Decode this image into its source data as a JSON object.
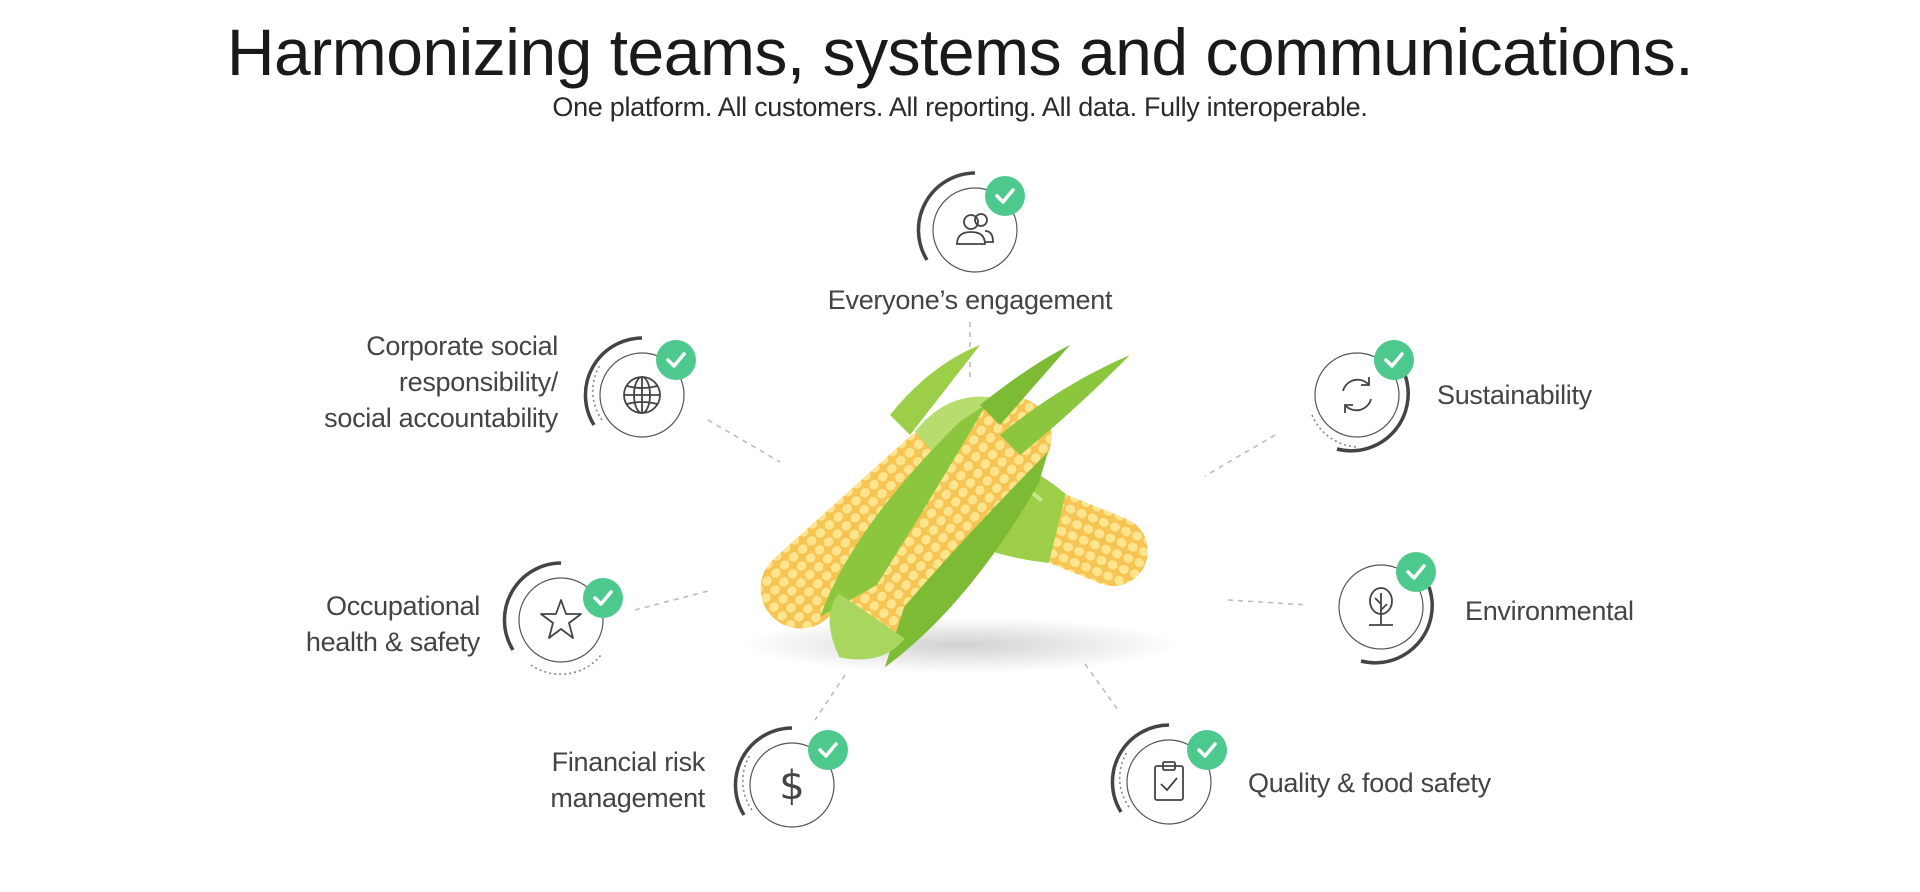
{
  "header": {
    "title": "Harmonizing teams, systems and communications.",
    "subtitle": "One platform. All customers. All reporting. All data. Fully interoperable."
  },
  "colors": {
    "check_green": "#4dc98d",
    "ring": "#555555",
    "text": "#444444"
  },
  "features": {
    "engagement": {
      "label": "Everyone’s engagement",
      "icon": "people-icon"
    },
    "csr": {
      "line1": "Corporate social",
      "line2": "responsibility/",
      "line3": "social accountability",
      "icon": "globe-icon"
    },
    "sustainability": {
      "label": "Sustainability",
      "icon": "refresh-icon"
    },
    "ohs": {
      "line1": "Occupational",
      "line2": "health & safety",
      "icon": "star-icon"
    },
    "environmental": {
      "label": "Environmental",
      "icon": "tree-icon"
    },
    "financial": {
      "line1": "Financial risk",
      "line2": "management",
      "icon": "dollar-icon"
    },
    "quality": {
      "label": "Quality & food safety",
      "icon": "clipboard-check-icon"
    }
  },
  "center_image": "corn-cobs"
}
